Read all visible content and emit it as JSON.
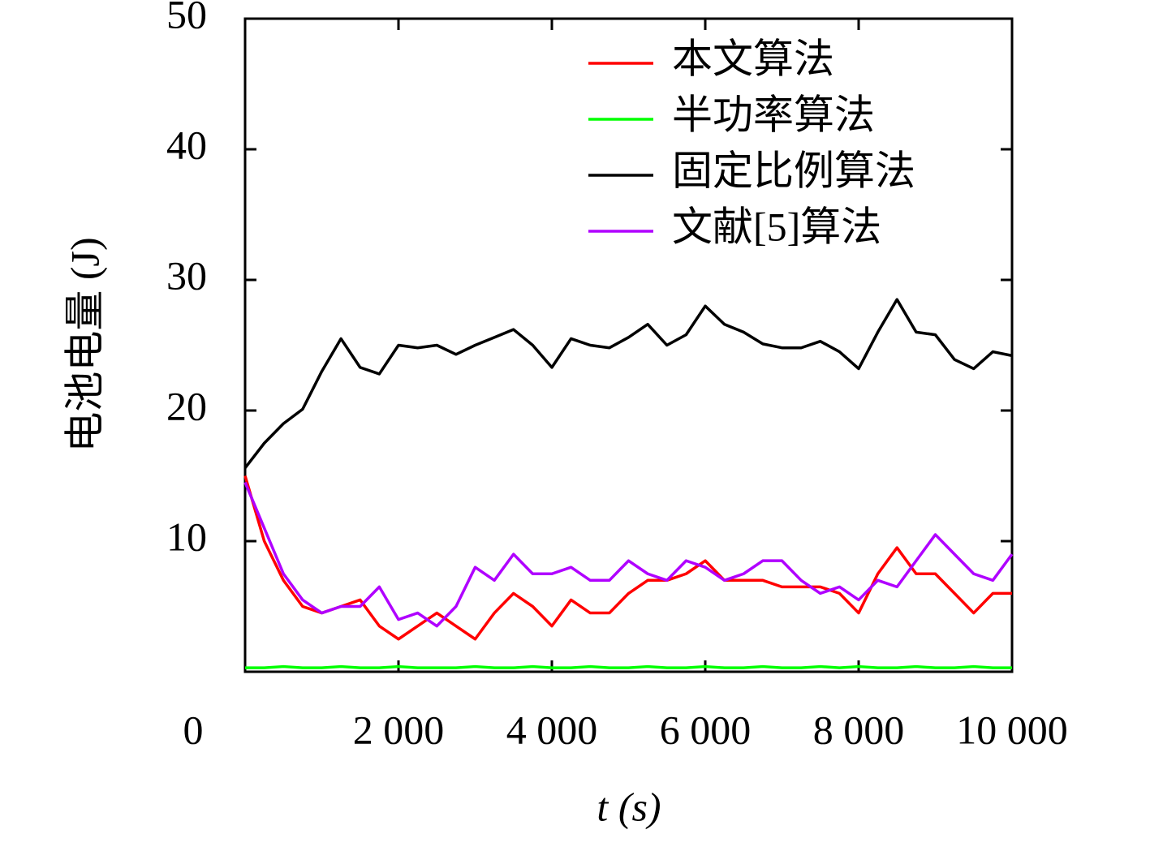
{
  "chart_data": {
    "type": "line",
    "x_label": "t (s)",
    "y_label": "电池电量 (J)",
    "xlim": [
      0,
      10000
    ],
    "ylim": [
      0,
      50
    ],
    "xticks": [
      0,
      {
        "value": 2000,
        "label": "2 000"
      },
      {
        "value": 4000,
        "label": "4 000"
      },
      {
        "value": 6000,
        "label": "6 000"
      },
      {
        "value": 8000,
        "label": "8 000"
      },
      {
        "value": 10000,
        "label": "10 000"
      }
    ],
    "yticks": [
      10,
      20,
      30,
      40,
      50
    ],
    "legend": "upper-right",
    "x": [
      0,
      250,
      500,
      750,
      1000,
      1250,
      1500,
      1750,
      2000,
      2250,
      2500,
      2750,
      3000,
      3250,
      3500,
      3750,
      4000,
      4250,
      4500,
      4750,
      5000,
      5250,
      5500,
      5750,
      6000,
      6250,
      6500,
      6750,
      7000,
      7250,
      7500,
      7750,
      8000,
      8250,
      8500,
      8750,
      9000,
      9250,
      9500,
      9750,
      10000
    ],
    "series": [
      {
        "name": "本文算法",
        "color": "#ff0000",
        "values": [
          15,
          10,
          7,
          5,
          4.5,
          5,
          5.5,
          3.5,
          2.5,
          3.5,
          4.5,
          3.5,
          2.5,
          4.5,
          6,
          5,
          3.5,
          5.5,
          4.5,
          4.5,
          6,
          7,
          7,
          7.5,
          8.5,
          7,
          7,
          7,
          6.5,
          6.5,
          6.5,
          6,
          4.5,
          7.5,
          9.5,
          7.5,
          7.5,
          6,
          4.5,
          6,
          6
        ]
      },
      {
        "name": "半功率算法",
        "color": "#00ff00",
        "values": [
          0.3,
          0.3,
          0.4,
          0.3,
          0.3,
          0.4,
          0.3,
          0.3,
          0.4,
          0.3,
          0.3,
          0.3,
          0.4,
          0.3,
          0.3,
          0.4,
          0.3,
          0.3,
          0.4,
          0.3,
          0.3,
          0.4,
          0.3,
          0.3,
          0.4,
          0.3,
          0.3,
          0.4,
          0.3,
          0.3,
          0.4,
          0.3,
          0.4,
          0.3,
          0.3,
          0.4,
          0.3,
          0.3,
          0.4,
          0.3,
          0.3
        ]
      },
      {
        "name": "固定比例算法",
        "color": "#000000",
        "values": [
          15.6,
          17.5,
          19,
          20.1,
          23,
          25.5,
          23.3,
          22.8,
          25,
          24.8,
          25,
          24.3,
          25,
          25.6,
          26.2,
          25,
          23.3,
          25.5,
          25,
          24.8,
          25.6,
          26.6,
          25,
          25.8,
          28,
          26.6,
          26,
          25.1,
          24.8,
          24.8,
          25.3,
          24.5,
          23.2,
          26,
          28.5,
          26,
          25.8,
          23.9,
          23.2,
          24.5,
          24.2
        ]
      },
      {
        "name": "文献[5]算法",
        "color": "#b000ff",
        "values": [
          14.5,
          11,
          7.5,
          5.5,
          4.5,
          5,
          5,
          6.5,
          4,
          4.5,
          3.5,
          5,
          8,
          7,
          9,
          7.5,
          7.5,
          8,
          7,
          7,
          8.5,
          7.5,
          7,
          8.5,
          8,
          7,
          7.5,
          8.5,
          8.5,
          7,
          6,
          6.5,
          5.5,
          7,
          6.5,
          8.5,
          10.5,
          9,
          7.5,
          7,
          9
        ]
      }
    ]
  }
}
